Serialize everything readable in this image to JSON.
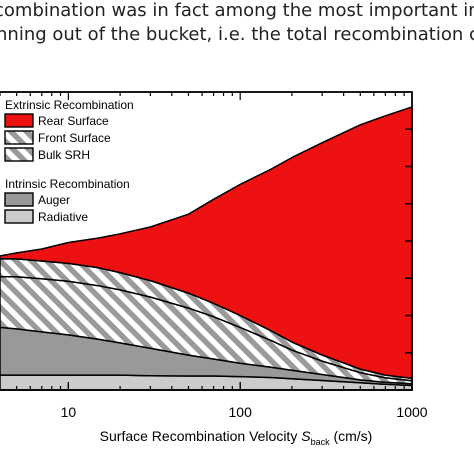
{
  "page_text": {
    "line1": "combination was in fact among the most important improve",
    "line2": "nning out of the bucket, i.e. the total recombination current a"
  },
  "chart_data": {
    "type": "area",
    "stacked": true,
    "x_scale": "log",
    "xlim": [
      4,
      1000
    ],
    "ylim": [
      0,
      1
    ],
    "xlabel_main": "Surface Recombination Velocity ",
    "xlabel_symbol": "S",
    "xlabel_subscript": "back",
    "xlabel_unit": " (cm/s)",
    "ylabel": "",
    "x_ticks": [
      {
        "value": 10,
        "label": "10"
      },
      {
        "value": 100,
        "label": "100"
      },
      {
        "value": 1000,
        "label": "1000"
      }
    ],
    "legend": {
      "position": "top-left",
      "groups": [
        {
          "title": "Extrinsic Recombination",
          "entries": [
            "Rear Surface",
            "Front Surface",
            "Bulk SRH"
          ]
        },
        {
          "title": "Intrinsic Recombination",
          "entries": [
            "Auger",
            "Radiative"
          ]
        }
      ]
    },
    "x": [
      4,
      5,
      7,
      10,
      15,
      20,
      30,
      50,
      70,
      100,
      150,
      200,
      300,
      500,
      700,
      1000
    ],
    "series": [
      {
        "name": "Radiative",
        "fill": "#cccccc",
        "hatch": false,
        "values": [
          0.05,
          0.05,
          0.05,
          0.05,
          0.05,
          0.05,
          0.048,
          0.047,
          0.047,
          0.045,
          0.042,
          0.038,
          0.032,
          0.024,
          0.019,
          0.015
        ]
      },
      {
        "name": "Auger",
        "fill": "#999999",
        "hatch": false,
        "values": [
          0.16,
          0.155,
          0.145,
          0.135,
          0.12,
          0.108,
          0.092,
          0.07,
          0.057,
          0.045,
          0.035,
          0.028,
          0.02,
          0.01,
          0.007,
          0.006
        ]
      },
      {
        "name": "Bulk SRH",
        "fill": "#ffffff",
        "hatch": true,
        "values": [
          0.17,
          0.175,
          0.178,
          0.18,
          0.18,
          0.178,
          0.172,
          0.158,
          0.142,
          0.12,
          0.09,
          0.068,
          0.045,
          0.024,
          0.015,
          0.01
        ]
      },
      {
        "name": "Front Surface",
        "fill": "#ffffff",
        "hatch": true,
        "values": [
          0.06,
          0.06,
          0.06,
          0.06,
          0.06,
          0.058,
          0.055,
          0.05,
          0.045,
          0.04,
          0.033,
          0.027,
          0.02,
          0.012,
          0.009,
          0.008
        ]
      },
      {
        "name": "Rear Surface",
        "fill": "#ee1111",
        "hatch": false,
        "values": [
          0.01,
          0.02,
          0.04,
          0.07,
          0.1,
          0.13,
          0.18,
          0.265,
          0.349,
          0.44,
          0.54,
          0.619,
          0.713,
          0.82,
          0.87,
          0.911
        ]
      }
    ]
  }
}
